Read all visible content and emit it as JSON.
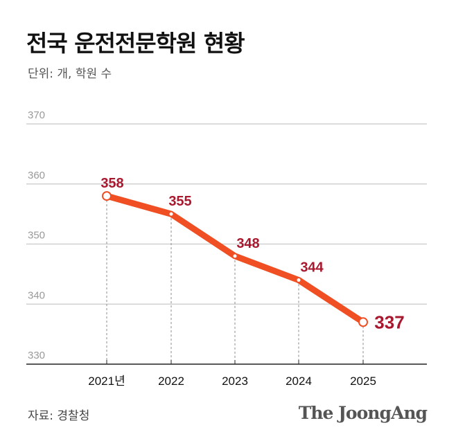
{
  "title": "전국 운전전문학원 현황",
  "subtitle": "단위: 개, 학원 수",
  "source": "자료: 경찰청",
  "logo": "The JoongAng",
  "colors": {
    "line": "#f04e23",
    "label": "#a8182e",
    "grid": "#c8c8c8",
    "axis": "#222222"
  },
  "chart_data": {
    "type": "line",
    "categories": [
      "2021년",
      "2022",
      "2023",
      "2024",
      "2025"
    ],
    "values": [
      358,
      355,
      348,
      344,
      337
    ],
    "labels": [
      "358",
      "355",
      "348",
      "344",
      "337"
    ],
    "ylim": [
      330,
      370
    ],
    "yticks": [
      "330",
      "340",
      "350",
      "360",
      "370"
    ],
    "grid": true,
    "xlabel": "",
    "ylabel": ""
  }
}
